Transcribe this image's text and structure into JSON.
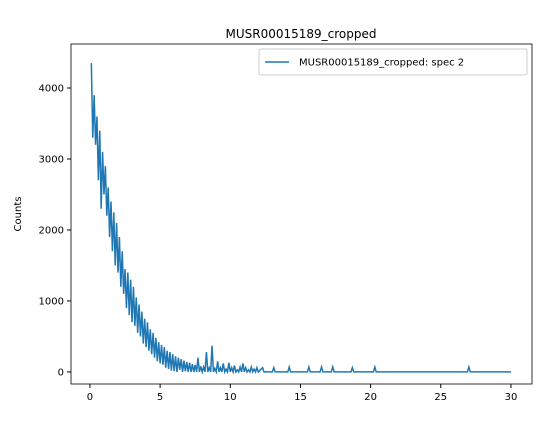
{
  "chart_data": {
    "type": "line",
    "title": "MUSR00015189_cropped",
    "ylabel": "Counts",
    "x": [
      0.1,
      0.2,
      0.3,
      0.4,
      0.5,
      0.6,
      0.7,
      0.8,
      0.9,
      1.0,
      1.1,
      1.2,
      1.3,
      1.4,
      1.5,
      1.6,
      1.7,
      1.8,
      1.9,
      2.0,
      2.1,
      2.2,
      2.3,
      2.4,
      2.5,
      2.6,
      2.7,
      2.8,
      2.9,
      3.0,
      3.1,
      3.2,
      3.3,
      3.4,
      3.5,
      3.6,
      3.7,
      3.8,
      3.9,
      4.0,
      4.1,
      4.2,
      4.3,
      4.4,
      4.5,
      4.6,
      4.7,
      4.8,
      4.9,
      5.0,
      5.1,
      5.2,
      5.3,
      5.4,
      5.5,
      5.6,
      5.7,
      5.8,
      5.9,
      6.0,
      6.1,
      6.2,
      6.3,
      6.4,
      6.5,
      6.6,
      6.7,
      6.8,
      6.9,
      7.0,
      7.1,
      7.2,
      7.3,
      7.4,
      7.5,
      7.6,
      7.7,
      7.8,
      7.9,
      8.0,
      8.1,
      8.2,
      8.3,
      8.4,
      8.5,
      8.6,
      8.7,
      8.8,
      8.9,
      9.0,
      9.1,
      9.2,
      9.3,
      9.4,
      9.5,
      9.6,
      9.7,
      9.8,
      9.9,
      10.0,
      10.1,
      10.2,
      10.3,
      10.4,
      10.5,
      10.6,
      10.7,
      10.8,
      10.9,
      11.0,
      11.1,
      11.2,
      11.3,
      11.4,
      11.5,
      11.6,
      11.7,
      11.8,
      11.9,
      12.0,
      12.3,
      12.4,
      13.0,
      13.1,
      13.2,
      14.1,
      14.2,
      14.3,
      15.5,
      15.6,
      15.7,
      16.4,
      16.5,
      16.6,
      17.2,
      17.3,
      17.4,
      18.6,
      18.7,
      18.8,
      20.2,
      20.3,
      20.4,
      26.9,
      27.0,
      27.1,
      30.0
    ],
    "series": [
      {
        "name": "MUSR00015189_cropped: spec 2",
        "color": "#1f77b4",
        "values": [
          4350,
          3300,
          3900,
          3200,
          3600,
          2700,
          3400,
          2300,
          3100,
          2500,
          2900,
          2200,
          2600,
          1900,
          2400,
          1700,
          2250,
          1500,
          2100,
          1400,
          1900,
          1200,
          1700,
          1100,
          1450,
          900,
          1400,
          800,
          1300,
          700,
          1200,
          650,
          1050,
          550,
          950,
          500,
          850,
          400,
          750,
          350,
          700,
          300,
          600,
          250,
          550,
          200,
          480,
          150,
          420,
          120,
          380,
          100,
          350,
          60,
          300,
          40,
          280,
          20,
          250,
          10,
          220,
          0,
          200,
          30,
          180,
          0,
          160,
          10,
          140,
          0,
          130,
          0,
          110,
          0,
          100,
          0,
          200,
          0,
          80,
          0,
          70,
          0,
          280,
          0,
          60,
          0,
          370,
          0,
          50,
          0,
          150,
          0,
          60,
          0,
          120,
          0,
          40,
          0,
          130,
          0,
          60,
          0,
          90,
          0,
          30,
          0,
          70,
          0,
          120,
          0,
          60,
          0,
          30,
          0,
          70,
          0,
          40,
          0,
          60,
          0,
          60,
          0,
          0,
          60,
          0,
          0,
          70,
          0,
          0,
          70,
          0,
          0,
          70,
          0,
          0,
          70,
          0,
          0,
          60,
          0,
          0,
          70,
          0,
          0,
          70,
          0,
          0
        ]
      }
    ],
    "xlim": [
      -1.35,
      31.5
    ],
    "ylim": [
      -170,
      4620
    ],
    "xticks": [
      0,
      5,
      10,
      15,
      20,
      25,
      30
    ],
    "yticks": [
      0,
      1000,
      2000,
      3000,
      4000
    ],
    "legend": "upper right"
  }
}
